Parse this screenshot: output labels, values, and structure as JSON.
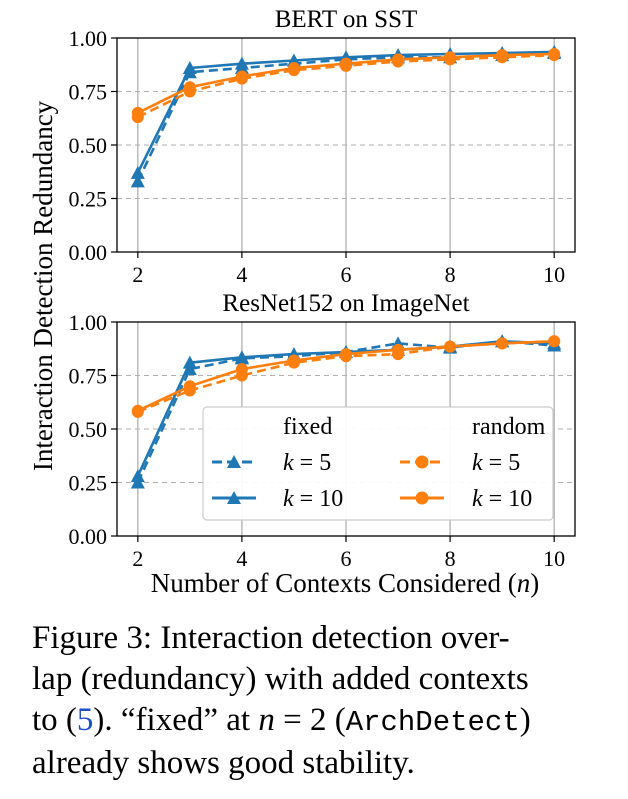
{
  "figure": {
    "ylabel": "Interaction Detection Redundancy",
    "xlabel_main": "Number of Contexts Considered (",
    "xlabel_var": "n",
    "xlabel_close": ")"
  },
  "caption": {
    "line1": "Figure 3:  Interaction detection over-",
    "line2": "lap (redundancy) with added contexts",
    "line3_pre": "to (",
    "line3_ref": "5",
    "line3_mid": "). “fixed” at ",
    "line3_var": "n",
    "line3_eq": " = 2 (",
    "line3_code": "ArchDetect",
    "line3_post": ")",
    "line4": "already shows good stability."
  },
  "legend": {
    "header_fixed": "fixed",
    "header_random": "random",
    "k_symbol": "k",
    "k5_label": " = 5",
    "k10_label": " = 10"
  },
  "colors": {
    "fixed": "#1f77b4",
    "random": "#ff7f0e",
    "grid": "#b0b0b0"
  },
  "chart_data": [
    {
      "type": "line",
      "title": "BERT on SST",
      "x": [
        2,
        3,
        4,
        5,
        6,
        7,
        8,
        9,
        10
      ],
      "xticks": [
        "2",
        "4",
        "6",
        "8",
        "10"
      ],
      "yticks": [
        "0.00",
        "0.25",
        "0.50",
        "0.75",
        "1.00"
      ],
      "xlim": [
        1.6,
        10.4
      ],
      "ylim": [
        0,
        1
      ],
      "grid": true,
      "series": [
        {
          "group": "fixed",
          "k": "5",
          "style": "dashed",
          "marker": "triangle",
          "values": [
            0.33,
            0.84,
            0.86,
            0.88,
            0.9,
            0.91,
            0.91,
            0.92,
            0.93
          ]
        },
        {
          "group": "fixed",
          "k": "10",
          "style": "solid",
          "marker": "triangle",
          "values": [
            0.37,
            0.86,
            0.88,
            0.895,
            0.91,
            0.92,
            0.925,
            0.93,
            0.935
          ]
        },
        {
          "group": "random",
          "k": "5",
          "style": "dashed",
          "marker": "circle",
          "values": [
            0.63,
            0.75,
            0.81,
            0.85,
            0.87,
            0.89,
            0.9,
            0.91,
            0.92
          ]
        },
        {
          "group": "random",
          "k": "10",
          "style": "solid",
          "marker": "circle",
          "values": [
            0.65,
            0.77,
            0.82,
            0.86,
            0.88,
            0.9,
            0.91,
            0.92,
            0.925
          ]
        }
      ]
    },
    {
      "type": "line",
      "title": "ResNet152 on ImageNet",
      "x": [
        2,
        3,
        4,
        5,
        6,
        7,
        8,
        9,
        10
      ],
      "xticks": [
        "2",
        "4",
        "6",
        "8",
        "10"
      ],
      "yticks": [
        "0.00",
        "0.25",
        "0.50",
        "0.75",
        "1.00"
      ],
      "xlim": [
        1.6,
        10.4
      ],
      "ylim": [
        0,
        1
      ],
      "grid": true,
      "legend_position": "lower-right",
      "series": [
        {
          "group": "fixed",
          "k": "5",
          "style": "dashed",
          "marker": "triangle",
          "values": [
            0.25,
            0.78,
            0.83,
            0.84,
            0.86,
            0.9,
            0.88,
            0.91,
            0.89
          ]
        },
        {
          "group": "fixed",
          "k": "10",
          "style": "solid",
          "marker": "triangle",
          "values": [
            0.28,
            0.81,
            0.835,
            0.85,
            0.86,
            0.87,
            0.885,
            0.91,
            0.9
          ]
        },
        {
          "group": "random",
          "k": "5",
          "style": "dashed",
          "marker": "circle",
          "values": [
            0.58,
            0.68,
            0.75,
            0.81,
            0.84,
            0.85,
            0.885,
            0.9,
            0.91
          ]
        },
        {
          "group": "random",
          "k": "10",
          "style": "solid",
          "marker": "circle",
          "values": [
            0.585,
            0.7,
            0.78,
            0.82,
            0.85,
            0.87,
            0.885,
            0.9,
            0.91
          ]
        }
      ]
    }
  ]
}
